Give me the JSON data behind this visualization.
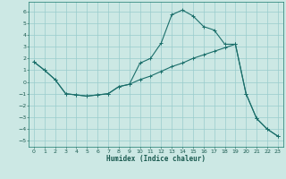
{
  "xlabel": "Humidex (Indice chaleur)",
  "background_color": "#cce8e4",
  "grid_color": "#99cccc",
  "line_color": "#1a6e6a",
  "xlim": [
    -0.5,
    23.5
  ],
  "ylim": [
    -5.5,
    6.8
  ],
  "yticks": [
    -5,
    -4,
    -3,
    -2,
    -1,
    0,
    1,
    2,
    3,
    4,
    5,
    6
  ],
  "xticks": [
    0,
    1,
    2,
    3,
    4,
    5,
    6,
    7,
    8,
    9,
    10,
    11,
    12,
    13,
    14,
    15,
    16,
    17,
    18,
    19,
    20,
    21,
    22,
    23
  ],
  "line1_x": [
    0,
    1,
    2,
    3,
    4,
    5,
    6,
    7,
    8,
    9,
    10,
    11,
    12,
    13,
    14,
    15,
    16,
    17,
    18,
    19,
    20,
    21,
    22,
    23
  ],
  "line1_y": [
    1.7,
    1.0,
    0.2,
    -1.0,
    -1.1,
    -1.2,
    -1.1,
    -1.0,
    -0.4,
    -0.2,
    1.6,
    2.0,
    3.3,
    5.7,
    6.1,
    5.6,
    4.7,
    4.4,
    3.2,
    3.2,
    -1.0,
    -3.1,
    -4.0,
    -4.6
  ],
  "line2_x": [
    0,
    1,
    2,
    3,
    4,
    5,
    6,
    7,
    8,
    9,
    10,
    11,
    12,
    13,
    14,
    15,
    16,
    17,
    18,
    19,
    20,
    21,
    22,
    23
  ],
  "line2_y": [
    1.7,
    1.0,
    0.2,
    -1.0,
    -1.1,
    -1.2,
    -1.1,
    -1.0,
    -0.4,
    -0.2,
    0.2,
    0.5,
    0.9,
    1.3,
    1.6,
    2.0,
    2.3,
    2.6,
    2.9,
    3.2,
    -1.0,
    -3.1,
    -4.0,
    -4.6
  ]
}
